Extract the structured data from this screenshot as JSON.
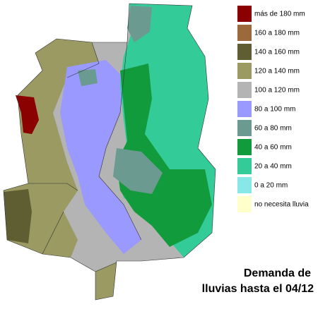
{
  "legend": [
    {
      "label": "más de 180 mm",
      "color": "#8b0000"
    },
    {
      "label": "160 a 180 mm",
      "color": "#9c6a3a"
    },
    {
      "label": "140 a 160 mm",
      "color": "#5e5e32"
    },
    {
      "label": "120 a 140 mm",
      "color": "#9a9a62"
    },
    {
      "label": "100 a 120 mm",
      "color": "#b4b4b4"
    },
    {
      "label": "80 a 100 mm",
      "color": "#9999ff"
    },
    {
      "label": "60 a 80 mm",
      "color": "#6a9a90"
    },
    {
      "label": "40 a 60 mm",
      "color": "#119b3c"
    },
    {
      "label": "20 a 40 mm",
      "color": "#33cc99"
    },
    {
      "label": "0 a 20 mm",
      "color": "#88e8e8"
    },
    {
      "label": "no necesita lluvia",
      "color": "#ffffcc"
    }
  ],
  "title": [
    "Demanda de",
    "lluvias hasta el 04/12"
  ]
}
